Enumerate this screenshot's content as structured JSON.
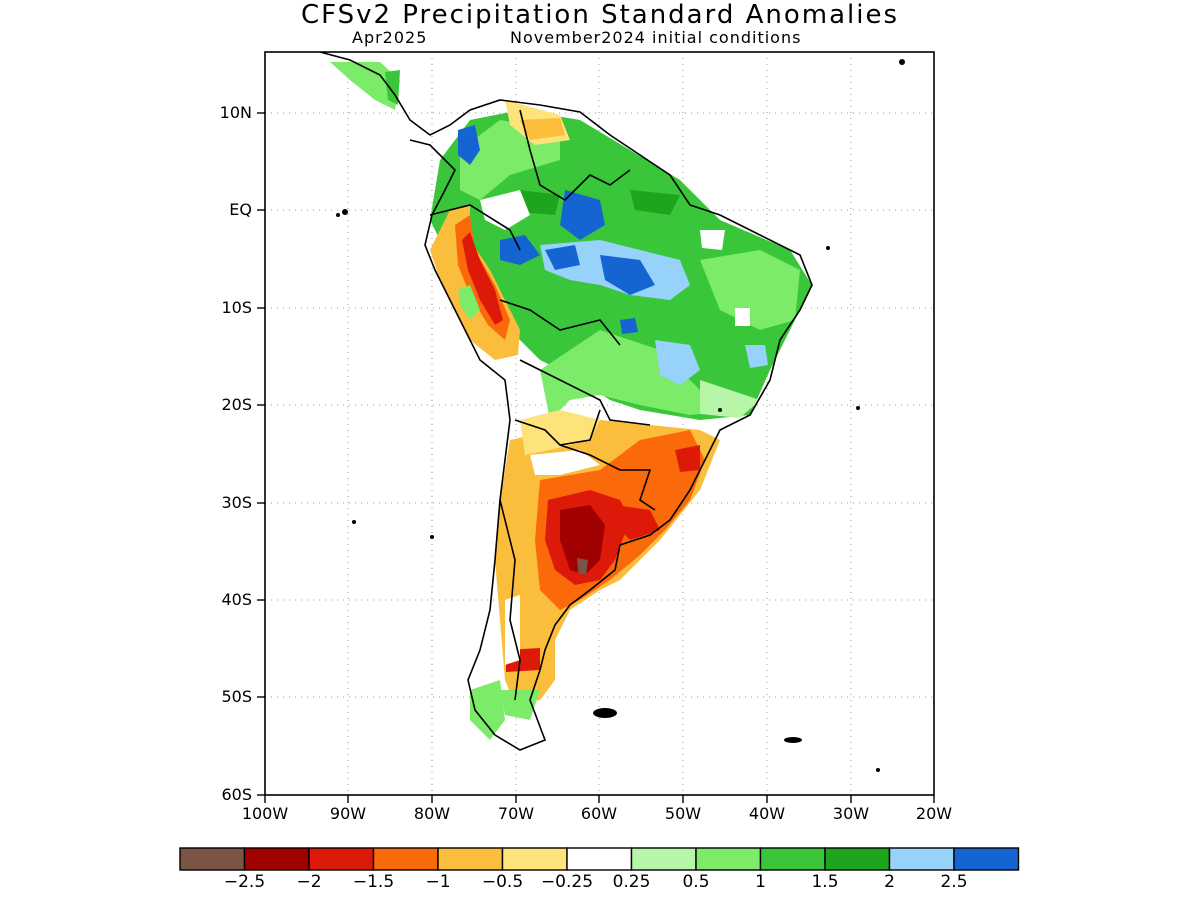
{
  "map": {
    "title": "CFSv2 Precipitation Standard Anomalies",
    "valid_month": "Apr2025",
    "initial_conditions": "November2024 initial conditions",
    "lat_labels": [
      "10N",
      "EQ",
      "10S",
      "20S",
      "30S",
      "40S",
      "50S",
      "60S"
    ],
    "lon_labels": [
      "100W",
      "90W",
      "80W",
      "70W",
      "60W",
      "50W",
      "40W",
      "30W",
      "20W"
    ],
    "grid": true
  },
  "colorbar": {
    "colors": [
      "#7a5445",
      "#a00000",
      "#dd1a0a",
      "#fa6a0a",
      "#fbbd3c",
      "#fde37a",
      "#ffffff",
      "#b7f5a9",
      "#7ceb6a",
      "#3ac63a",
      "#1ea51e",
      "#96d2fa",
      "#1464d2"
    ],
    "labels": [
      "−2.5",
      "−2",
      "−1.5",
      "−1",
      "−0.5",
      "−0.25",
      "0.25",
      "0.5",
      "1",
      "1.5",
      "2",
      "2.5"
    ]
  }
}
